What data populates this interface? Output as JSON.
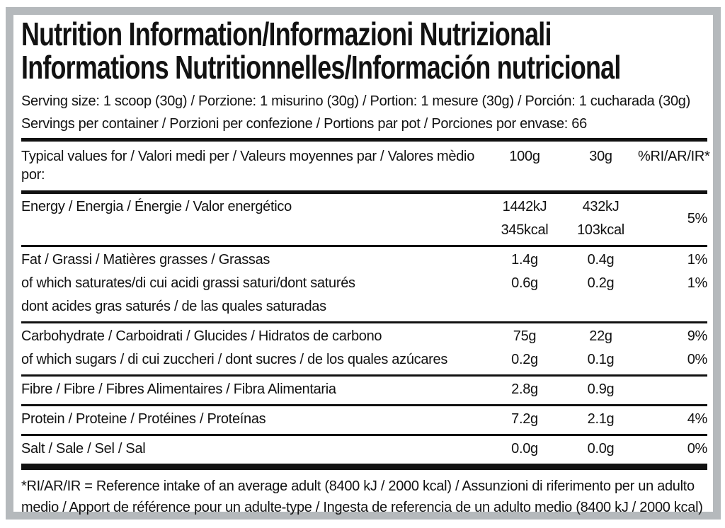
{
  "colors": {
    "frame_grey": "#b5b9bc",
    "text_black": "#121212",
    "rule_black": "#111111"
  },
  "title": {
    "line1": "Nutrition Information/Informazioni Nutrizionali",
    "line2": "Informations Nutritionnelles/Información nutricional"
  },
  "serving": {
    "size_line": "Serving size: 1 scoop (30g) / Porzione: 1 misurino (30g) / Portion: 1 mesure (30g) / Porción: 1 cucharada (30g)",
    "per_container_line": "Servings per container / Porzioni per confezione / Portions par pot / Porciones por envase: 66"
  },
  "table": {
    "header": {
      "label": "Typical values for / Valori medi per / Valeurs moyennes par / Valores mèdio por:",
      "col_100g": "100g",
      "col_30g": "30g",
      "col_pct": "%RI/AR/IR*"
    },
    "rows": [
      {
        "id": "energy",
        "pct_span": "5%",
        "lines": [
          {
            "label": "Energy / Energia / Énergie / Valor energético",
            "v100": "1442kJ",
            "v30": "432kJ"
          },
          {
            "label": "",
            "v100": "345kcal",
            "v30": "103kcal"
          }
        ]
      },
      {
        "id": "fat",
        "lines": [
          {
            "label": "Fat / Grassi / Matières grasses / Grassas",
            "v100": "1.4g",
            "v30": "0.4g",
            "pct": "1%"
          },
          {
            "label": "of which saturates/di cui acidi grassi saturi/dont saturés",
            "v100": "0.6g",
            "v30": "0.2g",
            "pct": "1%"
          },
          {
            "label": "dont acides gras saturés / de las quales saturadas"
          }
        ]
      },
      {
        "id": "carbohydrate",
        "lines": [
          {
            "label": "Carbohydrate / Carboidrati / Glucides / Hidratos de carbono",
            "v100": "75g",
            "v30": "22g",
            "pct": "9%"
          },
          {
            "label": "of which sugars / di cui zuccheri / dont sucres / de los quales azúcares",
            "v100": "0.2g",
            "v30": "0.1g",
            "pct": "0%"
          }
        ]
      },
      {
        "id": "fibre",
        "lines": [
          {
            "label": "Fibre / Fibre / Fibres Alimentaires / Fibra Alimentaria",
            "v100": "2.8g",
            "v30": "0.9g"
          }
        ]
      },
      {
        "id": "protein",
        "lines": [
          {
            "label": "Protein / Proteine / Protéines / Proteínas",
            "v100": "7.2g",
            "v30": "2.1g",
            "pct": "4%"
          }
        ]
      },
      {
        "id": "salt",
        "lines": [
          {
            "label": "Salt / Sale / Sel / Sal",
            "v100": "0.0g",
            "v30": "0.0g",
            "pct": "0%"
          }
        ]
      }
    ]
  },
  "footnote": "*RI/AR/IR = Reference intake of an average adult (8400 kJ / 2000 kcal)  / Assunzioni di riferimento per un adulto medio / Apport de référence pour un adulte-type / Ingesta de referencia de un adulto medio (8400 kJ / 2000 kcal)"
}
